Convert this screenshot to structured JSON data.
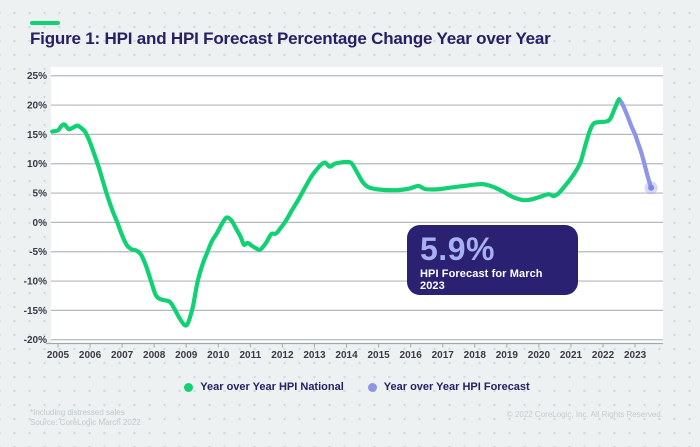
{
  "header": {
    "title": "Figure 1: HPI and HPI Forecast Percentage Change Year over Year"
  },
  "callout": {
    "value": "5.9%",
    "label": "HPI Forecast for March 2023"
  },
  "legend": [
    {
      "label": "Year over Year HPI National",
      "color": "#12d172"
    },
    {
      "label": "Year over Year HPI Forecast",
      "color": "#8c95e8"
    }
  ],
  "footnotes": {
    "line1": "*Including distressed sales",
    "line2": "Source: CoreLogic March 2022",
    "copyright": "© 2022 CoreLogic, Inc. All Rights Reserved."
  },
  "chart_data": {
    "type": "line",
    "title": "HPI and HPI Forecast Percentage Change Year over Year",
    "xlabel": "",
    "ylabel": "",
    "ylim": [
      -20,
      25
    ],
    "xlim": [
      2004.8,
      2023.75
    ],
    "grid": "horizontal",
    "legend_position": "bottom",
    "y_tick_values": [
      25,
      20,
      15,
      10,
      5,
      0,
      -5,
      -10,
      -15,
      -20
    ],
    "y_tick_labels": [
      "25%",
      "20%",
      "15%",
      "10%",
      "5%",
      "0%",
      "-5%",
      "-10%",
      "-15%",
      "-20%"
    ],
    "x_ticks": [
      "2005",
      "2006",
      "2007",
      "2008",
      "2009",
      "2010",
      "2011",
      "2012",
      "2013",
      "2014",
      "2015",
      "2016",
      "2017",
      "2018",
      "2019",
      "2020",
      "2021",
      "2022",
      "2023"
    ],
    "annotation": {
      "value": "5.9%",
      "label": "HPI Forecast for March 2023"
    },
    "series": [
      {
        "name": "Year over Year HPI National",
        "color": "#12d172",
        "points": [
          [
            2004.82,
            15.5
          ],
          [
            2005.0,
            15.7
          ],
          [
            2005.1,
            16.4
          ],
          [
            2005.2,
            16.7
          ],
          [
            2005.33,
            15.9
          ],
          [
            2005.45,
            16.1
          ],
          [
            2005.6,
            16.5
          ],
          [
            2005.72,
            16.1
          ],
          [
            2005.85,
            15.4
          ],
          [
            2006.0,
            13.6
          ],
          [
            2006.15,
            11.3
          ],
          [
            2006.3,
            8.9
          ],
          [
            2006.5,
            5.2
          ],
          [
            2006.7,
            2.0
          ],
          [
            2006.85,
            0.0
          ],
          [
            2007.0,
            -2.2
          ],
          [
            2007.15,
            -3.9
          ],
          [
            2007.3,
            -4.6
          ],
          [
            2007.45,
            -4.8
          ],
          [
            2007.6,
            -5.6
          ],
          [
            2007.75,
            -7.5
          ],
          [
            2007.9,
            -10.0
          ],
          [
            2008.05,
            -12.4
          ],
          [
            2008.2,
            -13.1
          ],
          [
            2008.35,
            -13.3
          ],
          [
            2008.5,
            -13.6
          ],
          [
            2008.65,
            -14.9
          ],
          [
            2008.8,
            -16.4
          ],
          [
            2008.95,
            -17.5
          ],
          [
            2009.05,
            -17.2
          ],
          [
            2009.2,
            -14.5
          ],
          [
            2009.35,
            -10.2
          ],
          [
            2009.5,
            -7.3
          ],
          [
            2009.65,
            -5.2
          ],
          [
            2009.8,
            -3.2
          ],
          [
            2009.95,
            -1.9
          ],
          [
            2010.1,
            -0.4
          ],
          [
            2010.25,
            0.8
          ],
          [
            2010.4,
            0.4
          ],
          [
            2010.55,
            -1.0
          ],
          [
            2010.7,
            -2.5
          ],
          [
            2010.8,
            -3.8
          ],
          [
            2010.92,
            -3.5
          ],
          [
            2011.05,
            -4.0
          ],
          [
            2011.2,
            -4.5
          ],
          [
            2011.32,
            -4.6
          ],
          [
            2011.5,
            -3.4
          ],
          [
            2011.65,
            -2.0
          ],
          [
            2011.8,
            -1.9
          ],
          [
            2011.95,
            -0.9
          ],
          [
            2012.1,
            0.2
          ],
          [
            2012.3,
            2.1
          ],
          [
            2012.5,
            3.9
          ],
          [
            2012.7,
            5.9
          ],
          [
            2012.9,
            7.8
          ],
          [
            2013.05,
            8.9
          ],
          [
            2013.2,
            9.8
          ],
          [
            2013.33,
            10.2
          ],
          [
            2013.48,
            9.5
          ],
          [
            2013.63,
            10.0
          ],
          [
            2013.8,
            10.2
          ],
          [
            2014.0,
            10.3
          ],
          [
            2014.15,
            10.1
          ],
          [
            2014.3,
            8.8
          ],
          [
            2014.5,
            6.9
          ],
          [
            2014.65,
            6.1
          ],
          [
            2014.8,
            5.8
          ],
          [
            2015.0,
            5.6
          ],
          [
            2015.3,
            5.5
          ],
          [
            2015.6,
            5.5
          ],
          [
            2015.9,
            5.7
          ],
          [
            2016.1,
            6.0
          ],
          [
            2016.25,
            6.2
          ],
          [
            2016.45,
            5.7
          ],
          [
            2016.7,
            5.6
          ],
          [
            2016.95,
            5.7
          ],
          [
            2017.2,
            5.9
          ],
          [
            2017.5,
            6.1
          ],
          [
            2017.8,
            6.3
          ],
          [
            2018.1,
            6.5
          ],
          [
            2018.3,
            6.5
          ],
          [
            2018.6,
            6.0
          ],
          [
            2018.9,
            5.2
          ],
          [
            2019.2,
            4.3
          ],
          [
            2019.5,
            3.8
          ],
          [
            2019.75,
            3.9
          ],
          [
            2020.0,
            4.3
          ],
          [
            2020.3,
            4.8
          ],
          [
            2020.45,
            4.5
          ],
          [
            2020.58,
            4.8
          ],
          [
            2020.72,
            5.6
          ],
          [
            2020.9,
            6.8
          ],
          [
            2021.1,
            8.3
          ],
          [
            2021.3,
            10.3
          ],
          [
            2021.45,
            13.2
          ],
          [
            2021.6,
            15.8
          ],
          [
            2021.72,
            16.9
          ],
          [
            2021.9,
            17.1
          ],
          [
            2022.1,
            17.2
          ],
          [
            2022.22,
            17.6
          ],
          [
            2022.35,
            19.2
          ],
          [
            2022.45,
            20.5
          ],
          [
            2022.5,
            21.0
          ]
        ]
      },
      {
        "name": "Year over Year HPI Forecast",
        "color": "#8c95e8",
        "endpoint_marker": true,
        "points": [
          [
            2022.5,
            21.0
          ],
          [
            2022.6,
            20.2
          ],
          [
            2022.75,
            18.3
          ],
          [
            2022.9,
            16.2
          ],
          [
            2023.0,
            15.0
          ],
          [
            2023.1,
            13.4
          ],
          [
            2023.2,
            11.8
          ],
          [
            2023.3,
            9.8
          ],
          [
            2023.4,
            7.7
          ],
          [
            2023.5,
            5.9
          ]
        ]
      }
    ]
  }
}
